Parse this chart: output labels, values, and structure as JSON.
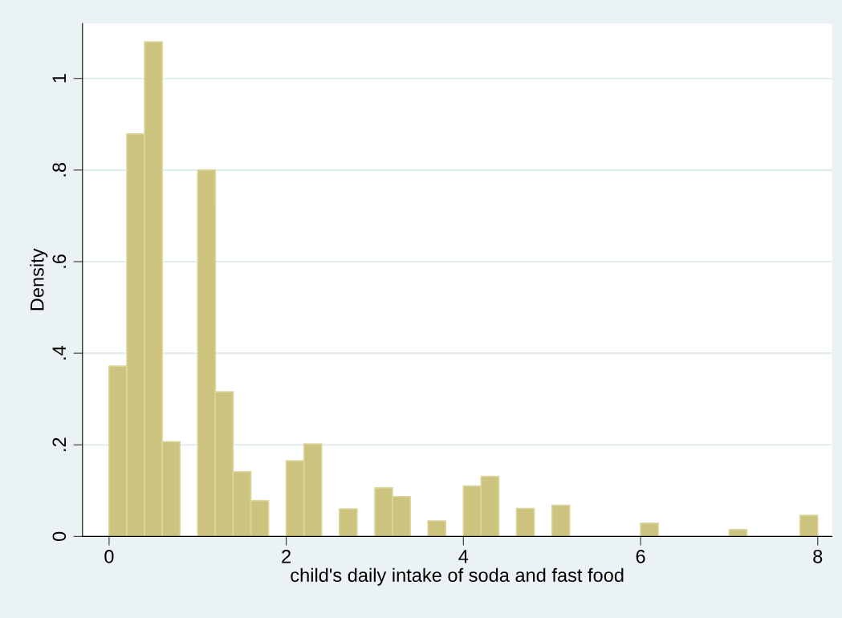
{
  "chart_data": {
    "type": "histogram",
    "xlabel": "child's daily intake of soda and fast food",
    "ylabel": "Density",
    "bins": [
      0,
      0.2,
      0.4,
      0.6,
      0.8,
      1.0,
      1.2,
      1.4,
      1.6,
      1.8,
      2.0,
      2.2,
      2.4,
      2.6,
      2.8,
      3.0,
      3.2,
      3.4,
      3.6,
      3.8,
      4.0,
      4.2,
      4.4,
      4.6,
      4.8,
      5.0,
      5.2,
      5.4,
      5.6,
      5.8,
      6.0,
      6.2,
      6.4,
      6.6,
      6.8,
      7.0,
      7.2,
      7.4,
      7.6,
      7.8,
      8.0
    ],
    "values": [
      0.372,
      0.879,
      1.08,
      0.207,
      0,
      0.8,
      0.316,
      0.141,
      0.078,
      0,
      0.165,
      0.202,
      0,
      0.06,
      0,
      0.106,
      0.087,
      0,
      0.034,
      0,
      0.11,
      0.131,
      0,
      0.061,
      0,
      0.068,
      0,
      0,
      0,
      0,
      0.029,
      0,
      0,
      0,
      0,
      0.015,
      0,
      0,
      0,
      0.046
    ],
    "color": "#cbc37e",
    "xlim": [
      -0.3,
      8.16
    ],
    "ylim": [
      0,
      1.12
    ],
    "xticks": [
      0,
      2,
      4,
      6,
      8
    ],
    "yticks": [
      0,
      {
        "value": 0.2,
        "label": ".2"
      },
      {
        "value": 0.4,
        "label": ".4"
      },
      {
        "value": 0.6,
        "label": ".6"
      },
      {
        "value": 0.8,
        "label": ".8"
      },
      1
    ],
    "grid": "y"
  }
}
